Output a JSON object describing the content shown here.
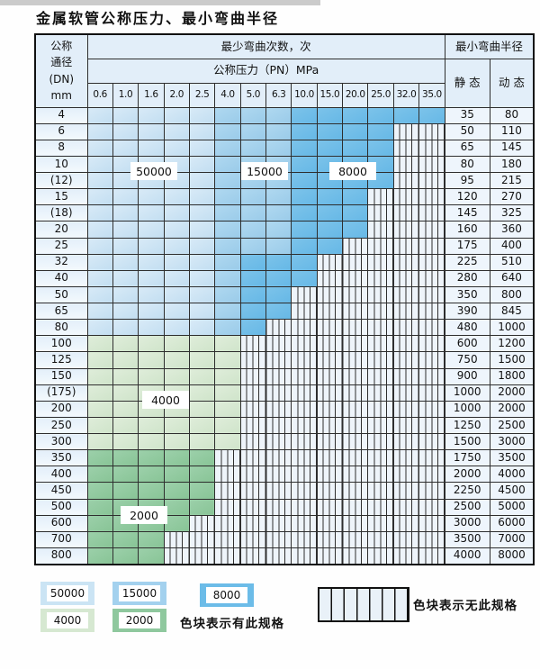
{
  "title": "金属软管公称压力、最小弯曲半径",
  "table": {
    "corner_lines": [
      "公称",
      "通径",
      "(DN)",
      "mm"
    ],
    "top_header": "最少弯曲次数，次",
    "right_header": "最小弯曲半径",
    "pressure_header": "公称压力（PN）MPa",
    "static_label": "静 态",
    "dynamic_label": "动 态",
    "pressure_columns": [
      "0.6",
      "1.0",
      "1.6",
      "2.0",
      "2.5",
      "4.0",
      "5.0",
      "6.3",
      "10.0",
      "15.0",
      "20.0",
      "25.0",
      "32.0",
      "35.0"
    ],
    "cell_code_legend": {
      "L": "50000",
      "M": "15000",
      "D": "8000",
      "G": "4000",
      "N": "2000",
      "X": "no-spec-hatched"
    },
    "rows": [
      {
        "dn": "4",
        "cells": "LLLLLMMMDDDDDD",
        "static": "35",
        "dynamic": "80"
      },
      {
        "dn": "6",
        "cells": "LLLLLMMMDDDDXX",
        "static": "50",
        "dynamic": "110"
      },
      {
        "dn": "8",
        "cells": "LLLLLMMMDDDDXX",
        "static": "65",
        "dynamic": "145"
      },
      {
        "dn": "10",
        "cells": "LLLLLMMMDDDDXX",
        "static": "80",
        "dynamic": "180"
      },
      {
        "dn": "(12)",
        "cells": "LLLLLMMMDDDDXX",
        "static": "95",
        "dynamic": "215"
      },
      {
        "dn": "15",
        "cells": "LLLLLMMMDDDXXX",
        "static": "120",
        "dynamic": "270"
      },
      {
        "dn": "(18)",
        "cells": "LLLLLMMMDDDXXX",
        "static": "145",
        "dynamic": "325"
      },
      {
        "dn": "20",
        "cells": "LLLLLMMMDDDXXX",
        "static": "160",
        "dynamic": "360"
      },
      {
        "dn": "25",
        "cells": "LLLLLMMMDDXXXX",
        "static": "175",
        "dynamic": "400"
      },
      {
        "dn": "32",
        "cells": "LLLLLMDDDXXXXX",
        "static": "225",
        "dynamic": "510"
      },
      {
        "dn": "40",
        "cells": "LLLLLMDDDXXXXX",
        "static": "280",
        "dynamic": "640"
      },
      {
        "dn": "50",
        "cells": "LLLLLMDDXXXXXX",
        "static": "350",
        "dynamic": "800"
      },
      {
        "dn": "65",
        "cells": "LLLLLMDDXXXXXX",
        "static": "390",
        "dynamic": "845"
      },
      {
        "dn": "80",
        "cells": "LLLLLMDXXXXXXX",
        "static": "480",
        "dynamic": "1000"
      },
      {
        "dn": "100",
        "cells": "GGGGGGXXXXXXXX",
        "static": "600",
        "dynamic": "1200"
      },
      {
        "dn": "125",
        "cells": "GGGGGGXXXXXXXX",
        "static": "750",
        "dynamic": "1500"
      },
      {
        "dn": "150",
        "cells": "GGGGGGXXXXXXXX",
        "static": "900",
        "dynamic": "1800"
      },
      {
        "dn": "(175)",
        "cells": "GGGGGGXXXXXXXX",
        "static": "1000",
        "dynamic": "2000"
      },
      {
        "dn": "200",
        "cells": "GGGGGGXXXXXXXX",
        "static": "1000",
        "dynamic": "2000"
      },
      {
        "dn": "250",
        "cells": "GGGGGGXXXXXXXX",
        "static": "1250",
        "dynamic": "2500"
      },
      {
        "dn": "300",
        "cells": "GGGGGGXXXXXXXX",
        "static": "1500",
        "dynamic": "3000"
      },
      {
        "dn": "350",
        "cells": "NNNNNXXXXXXXXX",
        "static": "1750",
        "dynamic": "3500"
      },
      {
        "dn": "400",
        "cells": "NNNNNXXXXXXXXX",
        "static": "2000",
        "dynamic": "4000"
      },
      {
        "dn": "450",
        "cells": "NNNNNXXXXXXXXX",
        "static": "2250",
        "dynamic": "4500"
      },
      {
        "dn": "500",
        "cells": "NNNNNXXXXXXXXX",
        "static": "2500",
        "dynamic": "5000"
      },
      {
        "dn": "600",
        "cells": "NNNNXXXXXXXXXX",
        "static": "3000",
        "dynamic": "6000"
      },
      {
        "dn": "700",
        "cells": "NNNXXXXXXXXXXX",
        "static": "3500",
        "dynamic": "7000"
      },
      {
        "dn": "800",
        "cells": "NNNXXXXXXXXXXX",
        "static": "4000",
        "dynamic": "8000"
      }
    ],
    "overlays": [
      {
        "label": "50000"
      },
      {
        "label": "15000"
      },
      {
        "label": "8000"
      },
      {
        "label": "4000"
      },
      {
        "label": "2000"
      }
    ]
  },
  "legend": {
    "swatches": [
      {
        "value": "50000",
        "code": "L"
      },
      {
        "value": "15000",
        "code": "M"
      },
      {
        "value": "8000",
        "code": "D"
      },
      {
        "value": "4000",
        "code": "G"
      },
      {
        "value": "2000",
        "code": "N"
      }
    ],
    "has_spec_note": "色块表示有此规格",
    "no_spec_note": "色块表示无此规格"
  },
  "colors": {
    "blue_50000": "#cbe4f4",
    "blue_15000": "#a3d1ee",
    "blue_8000": "#6cbce8",
    "green_4000": "#d6e8d1",
    "green_2000": "#8fc89e",
    "hatch_bg": "#eef4fa",
    "header_bg": "#e2eef9",
    "grid_line": "#2e2e2e"
  }
}
